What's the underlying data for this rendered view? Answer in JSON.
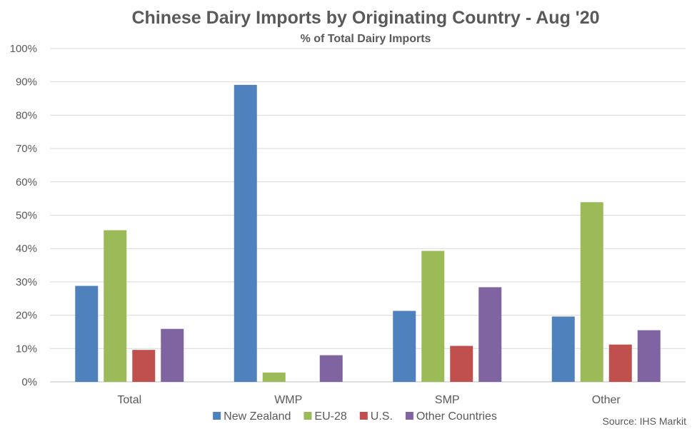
{
  "chart_data": {
    "type": "bar",
    "title": "Chinese Dairy Imports by Originating Country - Aug '20",
    "subtitle": "% of Total Dairy Imports",
    "categories": [
      "Total",
      "WMP",
      "SMP",
      "Other"
    ],
    "series": [
      {
        "name": "New Zealand",
        "color": "#4F81BD",
        "values": [
          28.8,
          89.1,
          21.3,
          19.6
        ]
      },
      {
        "name": "EU-28",
        "color": "#9BBB59",
        "values": [
          45.5,
          2.8,
          39.3,
          53.9
        ]
      },
      {
        "name": "U.S.",
        "color": "#C0504D",
        "values": [
          9.6,
          0,
          10.8,
          11.2
        ]
      },
      {
        "name": "Other Countries",
        "color": "#8064A2",
        "values": [
          15.9,
          8.0,
          28.4,
          15.5
        ]
      }
    ],
    "ylim": [
      0,
      100
    ],
    "yticks": [
      "0%",
      "10%",
      "20%",
      "30%",
      "40%",
      "50%",
      "60%",
      "70%",
      "80%",
      "90%",
      "100%"
    ],
    "grid": true,
    "legend_position": "bottom",
    "source": "Source: IHS Markit"
  }
}
